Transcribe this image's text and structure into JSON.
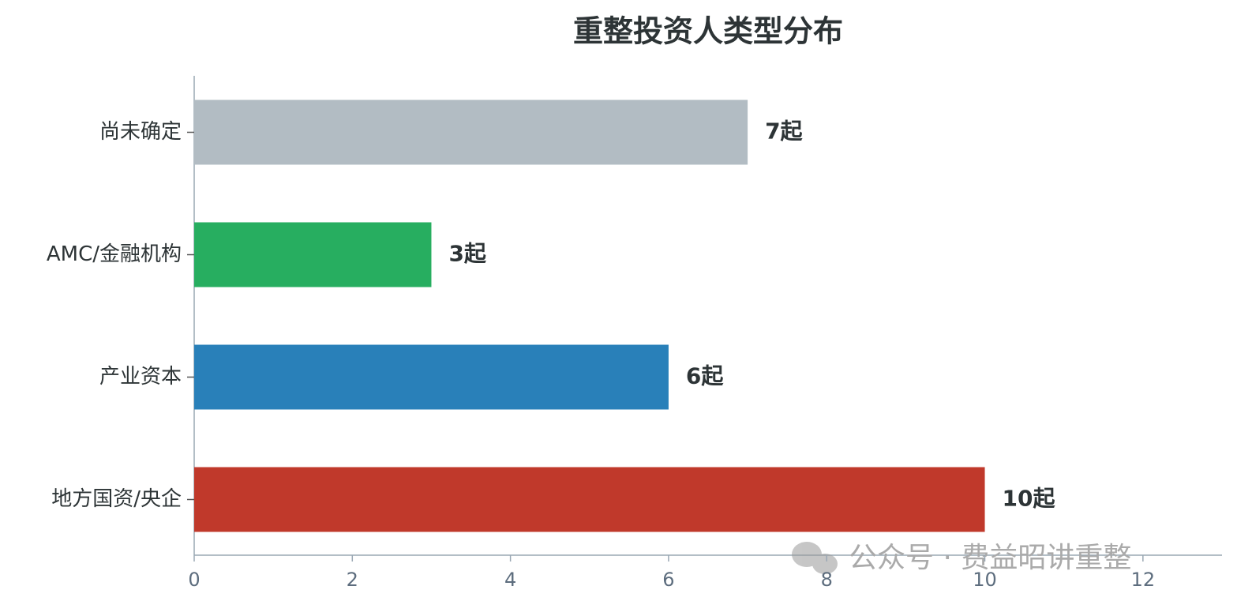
{
  "chart_data": {
    "type": "barh",
    "title": "重整投资人类型分布",
    "categories": [
      "尚未确定",
      "AMC/金融机构",
      "产业资本",
      "地方国资/央企"
    ],
    "values": [
      7,
      3,
      6,
      10
    ],
    "value_labels": [
      "7起",
      "3起",
      "6起",
      "10起"
    ],
    "colors": [
      "#b2bcc3",
      "#27ae60",
      "#2980b9",
      "#c0392b"
    ],
    "xlim": [
      0,
      13
    ],
    "xticks": [
      0,
      2,
      4,
      6,
      8,
      10,
      12
    ],
    "grid": false
  },
  "watermark": "公众号 · 费益昭讲重整"
}
